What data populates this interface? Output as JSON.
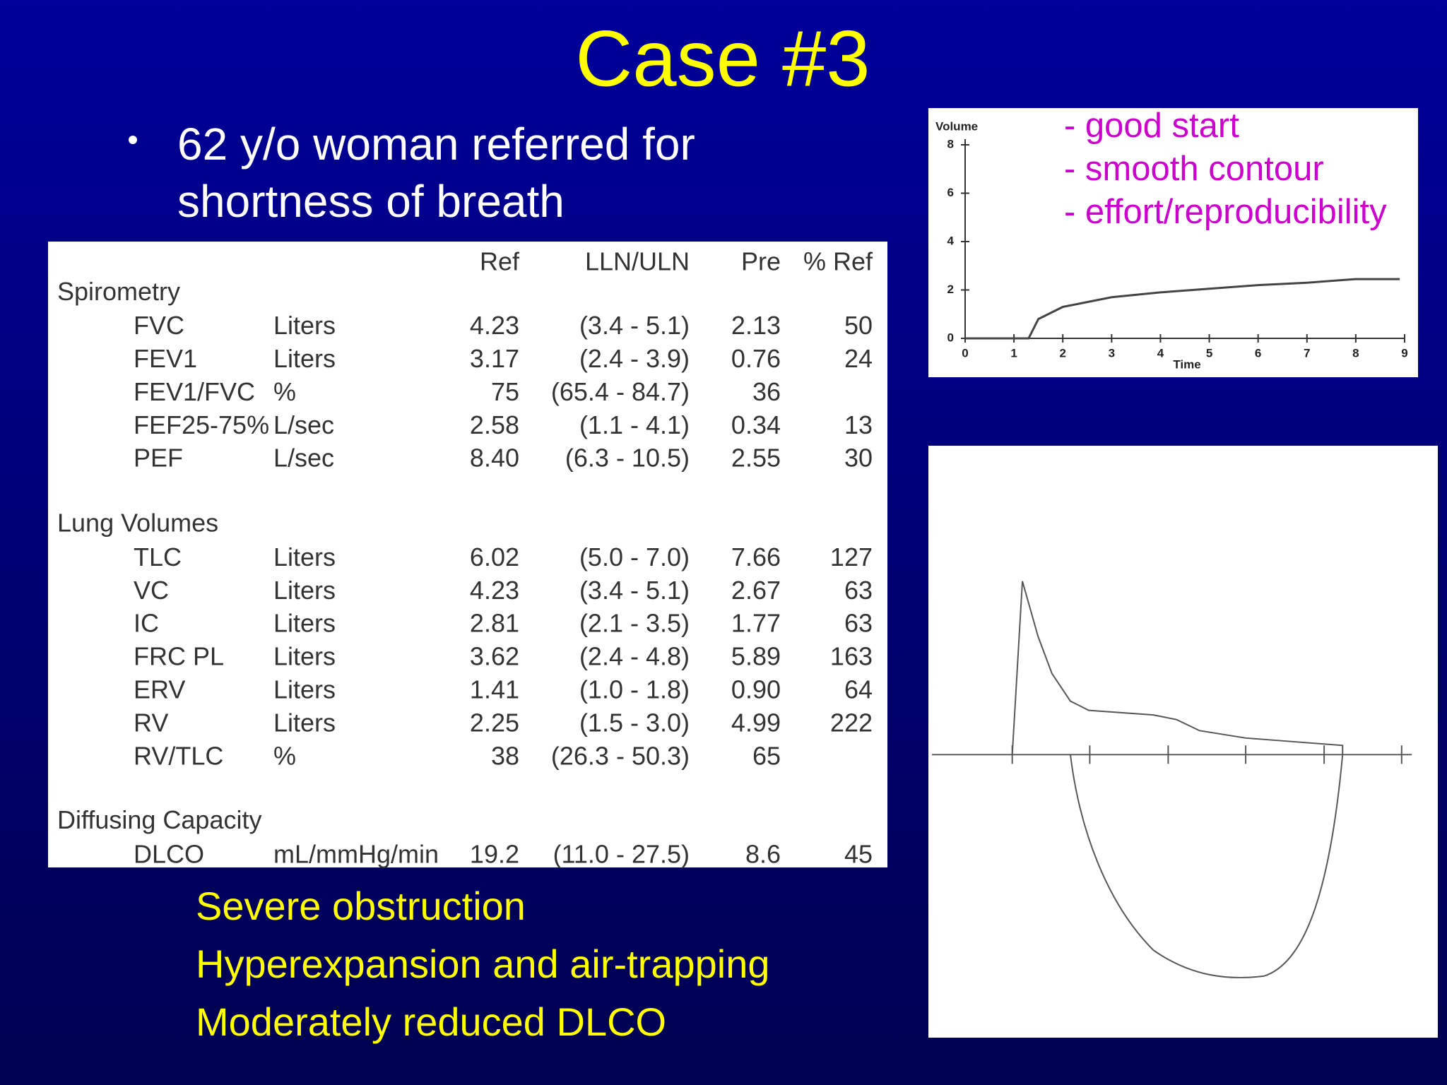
{
  "title": "Case #3",
  "bullet": [
    "62 y/o woman referred for",
    "shortness of breath"
  ],
  "table": {
    "header": [
      "Ref",
      "LLN/ULN",
      "Pre",
      "% Ref"
    ],
    "sections": [
      {
        "title": "Spirometry",
        "rows": [
          [
            "FVC",
            "Liters",
            "4.23",
            "(3.4 - 5.1)",
            "2.13",
            "50"
          ],
          [
            "FEV1",
            "Liters",
            "3.17",
            "(2.4 - 3.9)",
            "0.76",
            "24"
          ],
          [
            "FEV1/FVC",
            "%",
            "75",
            "(65.4 - 84.7)",
            "36",
            null
          ],
          [
            "FEF25-75%",
            "L/sec",
            "2.58",
            "(1.1 - 4.1)",
            "0.34",
            "13"
          ],
          [
            "PEF",
            "L/sec",
            "8.40",
            "(6.3 - 10.5)",
            "2.55",
            "30"
          ]
        ]
      },
      {
        "title": "Lung Volumes",
        "rows": [
          [
            "TLC",
            "Liters",
            "6.02",
            "(5.0 - 7.0)",
            "7.66",
            "127"
          ],
          [
            "VC",
            "Liters",
            "4.23",
            "(3.4 - 5.1)",
            "2.67",
            "63"
          ],
          [
            "IC",
            "Liters",
            "2.81",
            "(2.1 - 3.5)",
            "1.77",
            "63"
          ],
          [
            "FRC PL",
            "Liters",
            "3.62",
            "(2.4 - 4.8)",
            "5.89",
            "163"
          ],
          [
            "ERV",
            "Liters",
            "1.41",
            "(1.0 - 1.8)",
            "0.90",
            "64"
          ],
          [
            "RV",
            "Liters",
            "2.25",
            "(1.5 - 3.0)",
            "4.99",
            "222"
          ],
          [
            "RV/TLC",
            "%",
            "38",
            "(26.3 - 50.3)",
            "65",
            null
          ]
        ]
      },
      {
        "title": "Diffusing Capacity",
        "rows": [
          [
            "DLCO",
            "mL/mmHg/min",
            "19.2",
            "(11.0 - 27.5)",
            "8.6",
            "45"
          ]
        ]
      }
    ]
  },
  "volume_time": {
    "type": "line",
    "ylabel": "Volume",
    "xlabel": "Time",
    "x": [
      0,
      1.3,
      1.5,
      2,
      3,
      4,
      5,
      6,
      7,
      8,
      8.9
    ],
    "values": [
      0,
      0,
      0.8,
      1.3,
      1.7,
      1.9,
      2.05,
      2.2,
      2.3,
      2.45,
      2.45
    ],
    "xlim": [
      0,
      9
    ],
    "ylim": [
      0,
      8
    ],
    "xticks": [
      0,
      1,
      2,
      3,
      4,
      5,
      6,
      7,
      8,
      9
    ],
    "yticks": [
      0,
      2,
      4,
      6,
      8
    ],
    "color": "#444444",
    "notes": [
      "- good start",
      "- smooth contour",
      "- effort/reproducibility"
    ]
  },
  "conclusions": [
    "Severe obstruction",
    "Hyperexpansion and air-trapping",
    "Moderately reduced DLCO"
  ]
}
